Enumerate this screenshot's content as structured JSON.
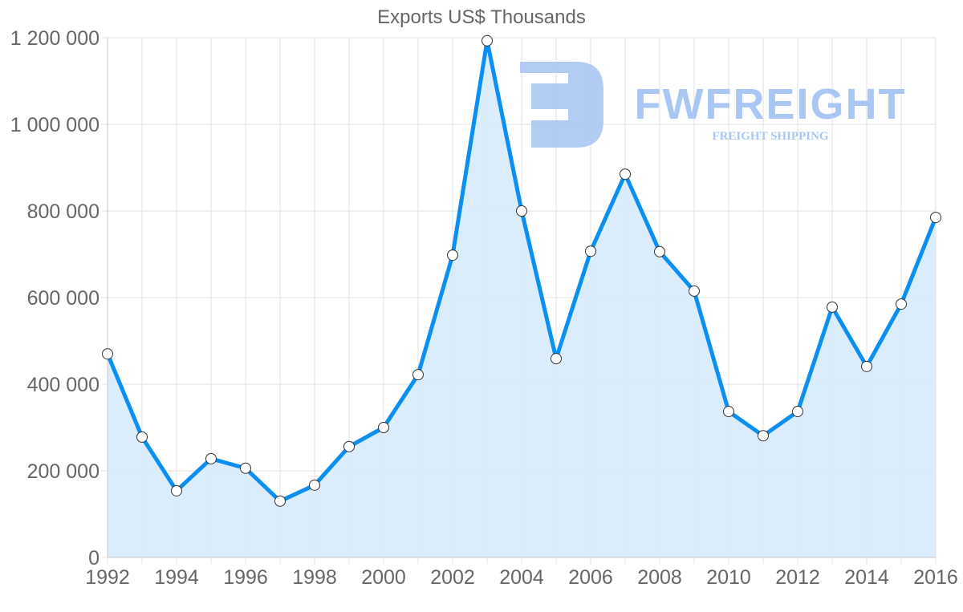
{
  "chart_data": {
    "type": "line",
    "title": "Exports US$ Thousands",
    "xlabel": "",
    "ylabel": "",
    "x": [
      1992,
      1993,
      1994,
      1995,
      1996,
      1997,
      1998,
      1999,
      2000,
      2001,
      2002,
      2003,
      2004,
      2005,
      2006,
      2007,
      2008,
      2009,
      2010,
      2011,
      2012,
      2013,
      2014,
      2015,
      2016
    ],
    "series": [
      {
        "name": "Exports US$ Thousands",
        "values": [
          470000,
          278000,
          154000,
          228000,
          206000,
          130000,
          167000,
          256000,
          300000,
          422000,
          698000,
          1193000,
          800000,
          459000,
          707000,
          885000,
          706000,
          615000,
          337000,
          281000,
          337000,
          578000,
          441000,
          585000,
          785000
        ],
        "fill": true
      }
    ],
    "ylim": [
      0,
      1200000
    ],
    "xlim": [
      1992,
      2016
    ],
    "y_ticks": [
      0,
      200000,
      400000,
      600000,
      800000,
      1000000,
      1200000
    ],
    "y_tick_labels": [
      "0",
      "200 000",
      "400 000",
      "600 000",
      "800 000",
      "1 000 000",
      "1 200 000"
    ],
    "x_ticks": [
      1992,
      1994,
      1996,
      1998,
      2000,
      2002,
      2004,
      2006,
      2008,
      2010,
      2012,
      2014,
      2016
    ],
    "x_tick_labels": [
      "1992",
      "1994",
      "1996",
      "1998",
      "2000",
      "2002",
      "2004",
      "2006",
      "2008",
      "2010",
      "2012",
      "2014",
      "2016"
    ],
    "grid": true,
    "legend": "none"
  },
  "colors": {
    "line": "#0b8ff0",
    "fill": "#d9ecfd",
    "grid": "#e2e2e2",
    "axis": "#c8c8c8",
    "text": "#666666",
    "watermark": "#aac6f2"
  },
  "watermark": {
    "brand": "FWFREIGHT",
    "tagline": "FREIGHT SHIPPING"
  }
}
